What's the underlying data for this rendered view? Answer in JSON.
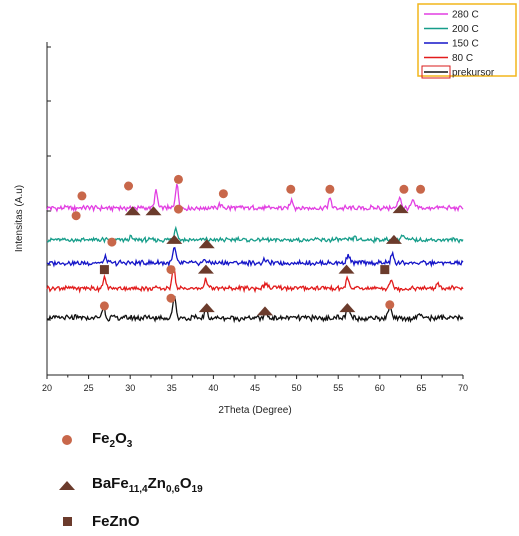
{
  "chart_data": {
    "type": "line",
    "xlabel": "2Theta (Degree)",
    "ylabel": "Intensitas (A.u)",
    "xlim": [
      20,
      70
    ],
    "xticks": [
      20,
      25,
      30,
      35,
      40,
      45,
      50,
      55,
      60,
      65,
      70
    ],
    "grid": false,
    "legend_position": "top-right",
    "series": [
      {
        "name": "280 C",
        "color": "#e23fe2",
        "baseline": 5.0,
        "noise": 0.045,
        "peaks": [
          [
            33.1,
            0.75
          ],
          [
            35.6,
            1.1
          ],
          [
            40.8,
            0.15
          ],
          [
            49.4,
            0.35
          ],
          [
            54.0,
            0.4
          ],
          [
            62.4,
            0.5
          ],
          [
            64.0,
            0.3
          ]
        ]
      },
      {
        "name": "200 C",
        "color": "#169d8a",
        "baseline": 3.55,
        "noise": 0.04,
        "peaks": [
          [
            30.1,
            0.12
          ],
          [
            35.5,
            0.55
          ],
          [
            43.0,
            0.1
          ],
          [
            57.0,
            0.15
          ],
          [
            62.7,
            0.2
          ]
        ]
      },
      {
        "name": "150 C",
        "color": "#1515c8",
        "baseline": 2.5,
        "noise": 0.045,
        "peaks": [
          [
            27.0,
            0.25
          ],
          [
            35.3,
            0.7
          ],
          [
            39.0,
            0.18
          ],
          [
            46.2,
            0.12
          ],
          [
            56.2,
            0.35
          ],
          [
            61.5,
            0.38
          ]
        ]
      },
      {
        "name": "80 C",
        "color": "#e21c1c",
        "baseline": 1.35,
        "noise": 0.045,
        "peaks": [
          [
            26.9,
            0.45
          ],
          [
            35.2,
            1.0
          ],
          [
            39.1,
            0.4
          ],
          [
            46.3,
            0.25
          ],
          [
            56.1,
            0.45
          ],
          [
            61.3,
            0.35
          ],
          [
            67.0,
            0.2
          ]
        ]
      },
      {
        "name": "prekursor",
        "color": "#111111",
        "baseline": 0.0,
        "noise": 0.05,
        "peaks": [
          [
            26.8,
            0.55
          ],
          [
            35.3,
            1.05
          ],
          [
            39.1,
            0.4
          ],
          [
            46.3,
            0.3
          ],
          [
            56.2,
            0.55
          ],
          [
            61.2,
            0.5
          ],
          [
            64.8,
            0.25
          ]
        ]
      }
    ],
    "markers": [
      {
        "symbol": "circle",
        "points": [
          [
            24.2,
            5.55
          ],
          [
            29.8,
            6.0
          ],
          [
            35.8,
            6.3
          ],
          [
            41.2,
            5.65
          ],
          [
            49.3,
            5.85
          ],
          [
            54.0,
            5.85
          ],
          [
            62.9,
            5.85
          ],
          [
            64.9,
            5.85
          ],
          [
            23.5,
            4.65
          ],
          [
            35.8,
            4.95
          ],
          [
            27.8,
            3.45
          ],
          [
            34.9,
            2.2
          ],
          [
            34.9,
            0.9
          ],
          [
            26.9,
            0.55
          ],
          [
            61.2,
            0.6
          ]
        ]
      },
      {
        "symbol": "triangle",
        "points": [
          [
            30.3,
            4.85
          ],
          [
            32.8,
            4.85
          ],
          [
            62.5,
            4.95
          ],
          [
            35.3,
            3.55
          ],
          [
            39.2,
            3.35
          ],
          [
            61.7,
            3.55
          ],
          [
            39.1,
            2.2
          ],
          [
            56.0,
            2.2
          ],
          [
            39.2,
            0.45
          ],
          [
            46.2,
            0.3
          ],
          [
            56.1,
            0.45
          ]
        ]
      },
      {
        "symbol": "square",
        "points": [
          [
            26.9,
            2.2
          ],
          [
            60.6,
            2.2
          ]
        ]
      }
    ],
    "key": [
      {
        "symbol": "circle",
        "label_parts": [
          [
            "Fe",
            ""
          ],
          [
            "2",
            "sub"
          ],
          [
            "O",
            ""
          ],
          [
            "3",
            "sub"
          ]
        ]
      },
      {
        "symbol": "triangle",
        "label_parts": [
          [
            "BaFe",
            ""
          ],
          [
            "11,4",
            "sub"
          ],
          [
            "Zn",
            ""
          ],
          [
            "0,6",
            "sub"
          ],
          [
            "O",
            ""
          ],
          [
            "19",
            "sub"
          ]
        ]
      },
      {
        "symbol": "square",
        "label_parts": [
          [
            "FeZnO",
            ""
          ]
        ]
      }
    ],
    "colors": {
      "circle": "#c8674a",
      "marker_dark": "#6b3b2c",
      "legend_border": "#f2b51c"
    }
  }
}
